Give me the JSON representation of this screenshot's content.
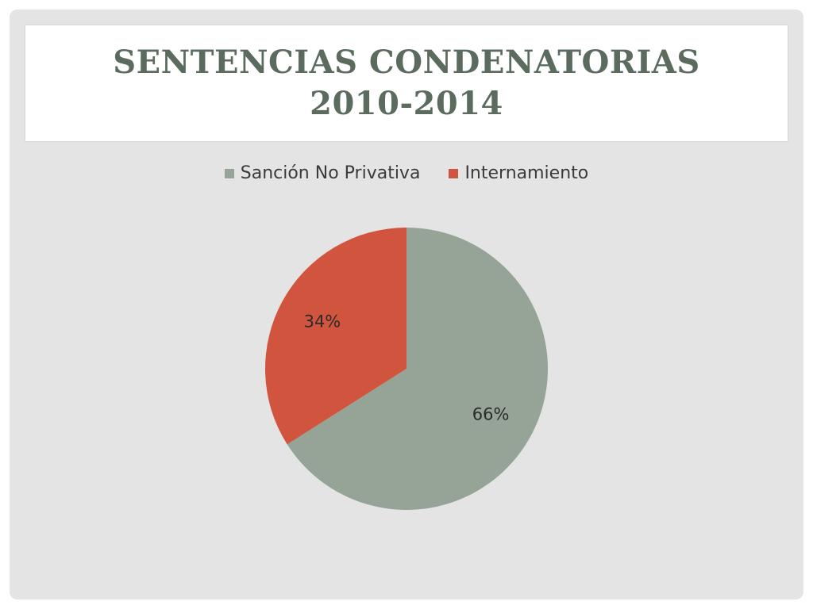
{
  "slide": {
    "title": "SENTENCIAS CONDENATORIAS 2010-2014"
  },
  "colors": {
    "slide_background": "#e4e4e4",
    "title_text": "#5b6b5e"
  },
  "chart_data": {
    "type": "pie",
    "title": "",
    "legend_position": "top",
    "series": [
      {
        "labels": [
          "Sanción No Privativa",
          "Internamiento"
        ],
        "values": [
          66,
          34
        ],
        "data_labels": [
          "66%",
          "34%"
        ],
        "colors": [
          "#95a497",
          "#d1543e"
        ]
      }
    ]
  }
}
